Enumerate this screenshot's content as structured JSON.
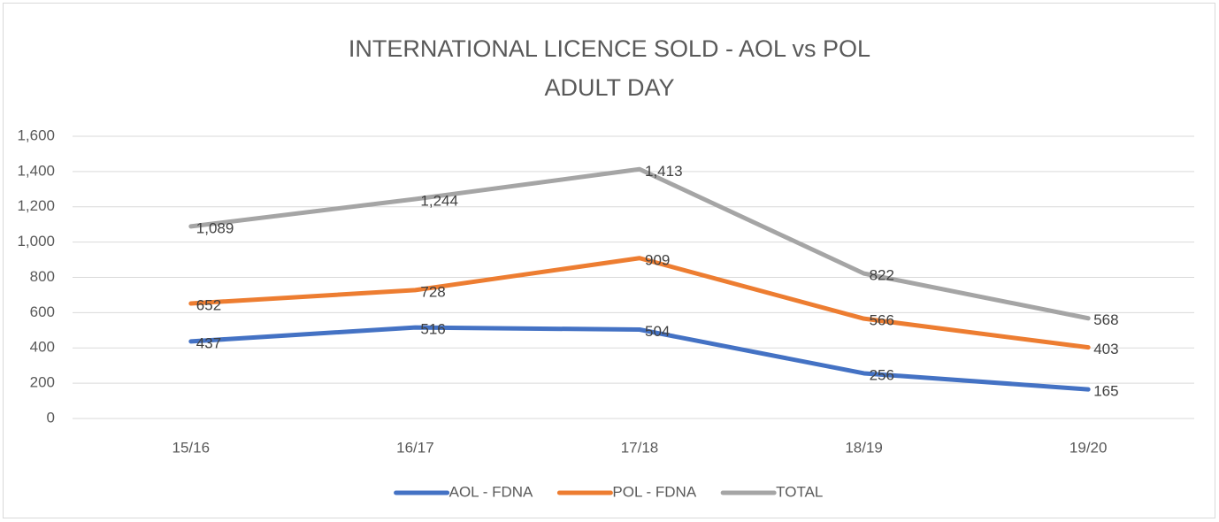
{
  "chart_data": {
    "type": "line",
    "title": "INTERNATIONAL LICENCE SOLD - AOL vs POL",
    "subtitle": "ADULT DAY",
    "categories": [
      "15/16",
      "16/17",
      "17/18",
      "18/19",
      "19/20"
    ],
    "series": [
      {
        "name": "AOL - FDNA",
        "color": "#4472c4",
        "values": [
          437,
          516,
          504,
          256,
          165
        ]
      },
      {
        "name": "POL - FDNA",
        "color": "#ed7d31",
        "values": [
          652,
          728,
          909,
          566,
          403
        ]
      },
      {
        "name": "TOTAL",
        "color": "#a5a5a5",
        "values": [
          1089,
          1244,
          1413,
          822,
          568
        ],
        "value_labels": [
          "1,089",
          "1,244",
          "1,413",
          "822",
          "568"
        ]
      }
    ],
    "ylim": [
      0,
      1600
    ],
    "yticks": [
      0,
      200,
      400,
      600,
      800,
      {
        "value": 1000,
        "label": "1,000"
      },
      {
        "value": 1200,
        "label": "1,200"
      },
      {
        "value": 1400,
        "label": "1,400"
      },
      {
        "value": 1600,
        "label": "1,600"
      }
    ],
    "grid": true,
    "legend": "bottom"
  }
}
